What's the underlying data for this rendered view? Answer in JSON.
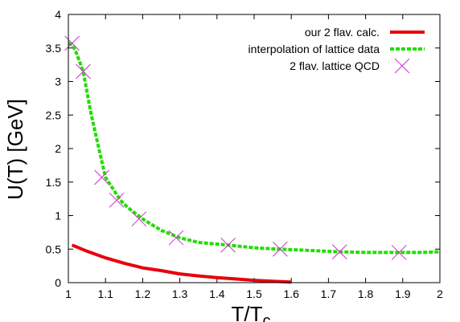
{
  "chart_data": {
    "type": "line",
    "xlabel_main": "T/T",
    "xlabel_sub": "c",
    "ylabel": "U(T) [GeV]",
    "xlim": [
      1,
      2
    ],
    "ylim": [
      0,
      4
    ],
    "x_ticks": [
      "1",
      "1.1",
      "1.2",
      "1.3",
      "1.4",
      "1.5",
      "1.6",
      "1.7",
      "1.8",
      "1.9",
      "2"
    ],
    "y_ticks": [
      "0",
      "0.5",
      "1",
      "1.5",
      "2",
      "2.5",
      "3",
      "3.5",
      "4"
    ],
    "legend_position": "top-right",
    "series": [
      {
        "name": "our 2 flav. calc.",
        "style": "solid",
        "color": "#e8000b",
        "x": [
          1.01,
          1.05,
          1.1,
          1.15,
          1.2,
          1.25,
          1.3,
          1.35,
          1.4,
          1.45,
          1.5,
          1.55,
          1.6
        ],
        "y": [
          0.56,
          0.47,
          0.37,
          0.29,
          0.22,
          0.18,
          0.13,
          0.1,
          0.075,
          0.055,
          0.035,
          0.02,
          0.01
        ]
      },
      {
        "name": "interpolation of lattice data",
        "style": "dashed",
        "color": "#22dd00",
        "x": [
          1.0,
          1.01,
          1.02,
          1.04,
          1.06,
          1.08,
          1.1,
          1.12,
          1.14,
          1.16,
          1.2,
          1.25,
          1.3,
          1.35,
          1.43,
          1.5,
          1.57,
          1.65,
          1.73,
          1.8,
          1.89,
          1.95,
          2.0
        ],
        "y": [
          3.57,
          3.55,
          3.45,
          3.15,
          2.55,
          2.05,
          1.57,
          1.4,
          1.23,
          1.12,
          0.95,
          0.78,
          0.67,
          0.6,
          0.56,
          0.52,
          0.5,
          0.48,
          0.46,
          0.45,
          0.45,
          0.45,
          0.46
        ]
      },
      {
        "name": "2 flav. lattice QCD",
        "style": "marker",
        "color": "#cc33cc",
        "x": [
          1.01,
          1.04,
          1.09,
          1.13,
          1.19,
          1.29,
          1.43,
          1.57,
          1.73,
          1.89
        ],
        "y": [
          3.57,
          3.15,
          1.57,
          1.23,
          0.95,
          0.67,
          0.56,
          0.5,
          0.46,
          0.45
        ]
      }
    ]
  }
}
